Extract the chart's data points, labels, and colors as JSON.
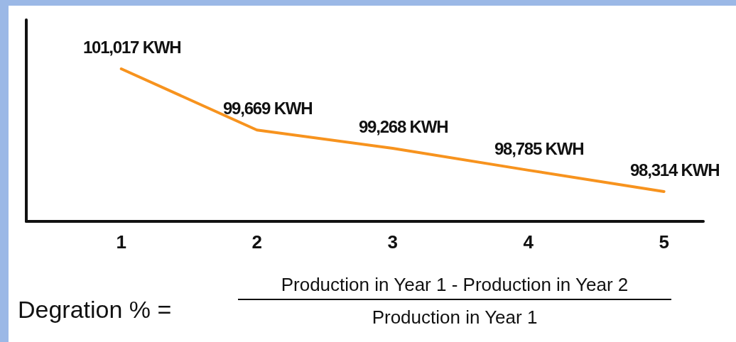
{
  "chart_data": {
    "type": "line",
    "x": [
      1,
      2,
      3,
      4,
      5
    ],
    "xlim": [
      0.3,
      5.29
    ],
    "xticks": [
      1,
      2,
      3,
      4,
      5
    ],
    "series": [
      {
        "color": "#f7931e",
        "values": [
          101017,
          99669,
          99268,
          98785,
          98314
        ],
        "value_labels": [
          "101,017 KWH",
          "99,669 KWH",
          "99,268 KWH",
          "98,785 KWH",
          "98,314 KWH"
        ]
      }
    ],
    "annotations": [
      "Degration % =",
      "Production in Year 1 - Production in Year 2",
      "Production in Year 1"
    ],
    "marker": "none",
    "line_style": "solid"
  }
}
